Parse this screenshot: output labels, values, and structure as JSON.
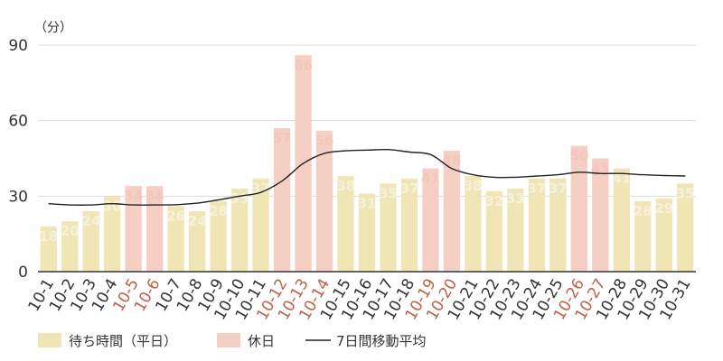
{
  "chart_data": {
    "type": "bar",
    "title": "",
    "ylabel": "",
    "xlabel": "",
    "y_unit_label": "（分）",
    "ylim": [
      0,
      90
    ],
    "yticks": [
      0,
      30,
      60,
      90
    ],
    "grid": "horizontal",
    "legend_position": "bottom-left",
    "colors": {
      "weekday": "#f0e6b5",
      "holiday": "#f6cfc4",
      "weekday_label": "#f5f1dc",
      "holiday_label": "#f3c7bb",
      "holiday_tick": "#c0614a",
      "line": "#222222",
      "grid": "#dddddd",
      "axis": "#333333"
    },
    "categories": [
      "10-1",
      "10-2",
      "10-3",
      "10-4",
      "10-5",
      "10-6",
      "10-7",
      "10-8",
      "10-9",
      "10-10",
      "10-11",
      "10-12",
      "10-13",
      "10-14",
      "10-15",
      "10-16",
      "10-17",
      "10-18",
      "10-19",
      "10-20",
      "10-21",
      "10-22",
      "10-23",
      "10-24",
      "10-25",
      "10-26",
      "10-27",
      "10-28",
      "10-29",
      "10-30",
      "10-31"
    ],
    "values": [
      18,
      20,
      24,
      30,
      34,
      34,
      26,
      24,
      28,
      33,
      37,
      57,
      86,
      56,
      38,
      31,
      35,
      37,
      41,
      48,
      38,
      32,
      33,
      37,
      37,
      50,
      45,
      41,
      28,
      29,
      35
    ],
    "day_type": [
      "weekday",
      "weekday",
      "weekday",
      "weekday",
      "holiday",
      "holiday",
      "weekday",
      "weekday",
      "weekday",
      "weekday",
      "weekday",
      "holiday",
      "holiday",
      "holiday",
      "weekday",
      "weekday",
      "weekday",
      "weekday",
      "holiday",
      "holiday",
      "weekday",
      "weekday",
      "weekday",
      "weekday",
      "weekday",
      "holiday",
      "holiday",
      "weekday",
      "weekday",
      "weekday",
      "weekday"
    ],
    "moving_average": [
      27,
      26.5,
      26.5,
      27,
      26.5,
      26.5,
      26.6,
      27.2,
      28.5,
      30,
      31.5,
      36,
      43,
      47,
      48,
      48.3,
      48.5,
      47.5,
      46.5,
      41,
      38.5,
      37.5,
      37.5,
      38,
      38.5,
      39.5,
      39,
      39,
      38.5,
      38.2,
      38
    ],
    "legend": {
      "weekday": "待ち時間（平日）",
      "holiday": "休日",
      "line": "7日間移動平均"
    }
  }
}
